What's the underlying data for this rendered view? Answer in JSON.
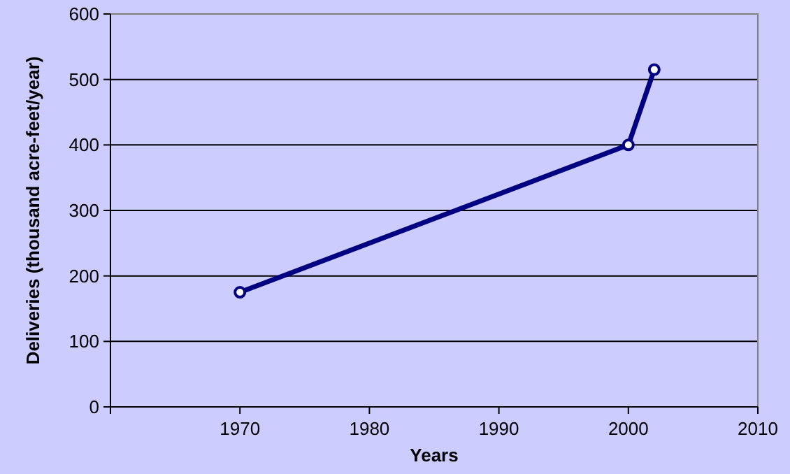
{
  "chart_data": {
    "type": "line",
    "xlabel": "Years",
    "ylabel": "Deliveries (thousand acre-feet/year)",
    "x": [
      1970,
      2000,
      2002
    ],
    "series": [
      {
        "color": "#000080",
        "values": [
          175,
          400,
          515
        ]
      }
    ],
    "xlim": [
      1960,
      2010
    ],
    "xticks": [
      {
        "value": 1960,
        "label": null
      },
      1970,
      1980,
      1990,
      2000,
      2010
    ],
    "ylim": [
      0,
      600
    ],
    "yticks": [
      0,
      100,
      200,
      300,
      400,
      500,
      600
    ],
    "grid": "y",
    "marker": "circle",
    "line_style": "solid"
  }
}
